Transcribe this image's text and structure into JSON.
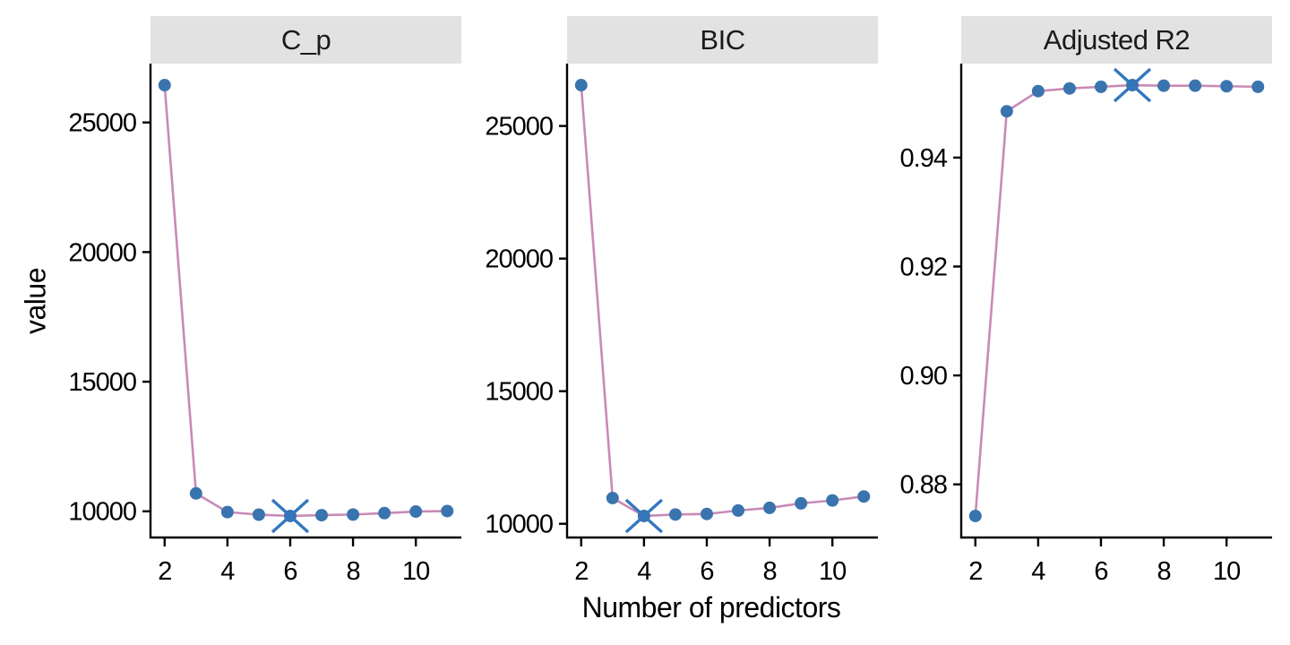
{
  "figure": {
    "y_axis_title": "value",
    "x_axis_title": "Number of predictors"
  },
  "style": {
    "line_color": "#C98AB6",
    "point_color": "#3A74AF",
    "best_marker_color": "#3377BE",
    "strip_background": "#E2E2E2",
    "strip_text_color": "#1a1a1a",
    "axis_color": "#000000",
    "panel_background": "#FFFFFF"
  },
  "chart_data": {
    "type": "line",
    "title": "",
    "xlabel": "Number of predictors",
    "ylabel": "value",
    "x": [
      2,
      3,
      4,
      5,
      6,
      7,
      8,
      9,
      10,
      11
    ],
    "x_ticks": [
      2,
      4,
      6,
      8,
      10
    ],
    "x_tick_labels": [
      "2",
      "4",
      "6",
      "8",
      "10"
    ],
    "grid": "off",
    "legend": "none",
    "facets": [
      {
        "label": "C_p",
        "values": [
          26440,
          10690,
          9970,
          9870,
          9820,
          9850,
          9875,
          9930,
          9990,
          10010
        ],
        "best_x": 6,
        "best_value": 9820,
        "best_rule": "min",
        "y_ticks": [
          10000,
          15000,
          20000,
          25000
        ],
        "y_tick_labels": [
          "10000",
          "15000",
          "20000",
          "25000"
        ]
      },
      {
        "label": "BIC",
        "values": [
          26540,
          10970,
          10295,
          10350,
          10370,
          10500,
          10600,
          10770,
          10880,
          11030
        ],
        "best_x": 4,
        "best_value": 10295,
        "best_rule": "min",
        "y_ticks": [
          10000,
          15000,
          20000,
          25000
        ],
        "y_tick_labels": [
          "10000",
          "15000",
          "20000",
          "25000"
        ]
      },
      {
        "label": "Adjusted R2",
        "values": [
          0.8742,
          0.9485,
          0.9522,
          0.9527,
          0.953,
          0.9533,
          0.9532,
          0.9532,
          0.9531,
          0.953
        ],
        "best_x": 7,
        "best_value": 0.9533,
        "best_rule": "max",
        "y_ticks": [
          0.88,
          0.9,
          0.92,
          0.94
        ],
        "y_tick_labels": [
          "0.88",
          "0.90",
          "0.92",
          "0.94"
        ]
      }
    ]
  }
}
